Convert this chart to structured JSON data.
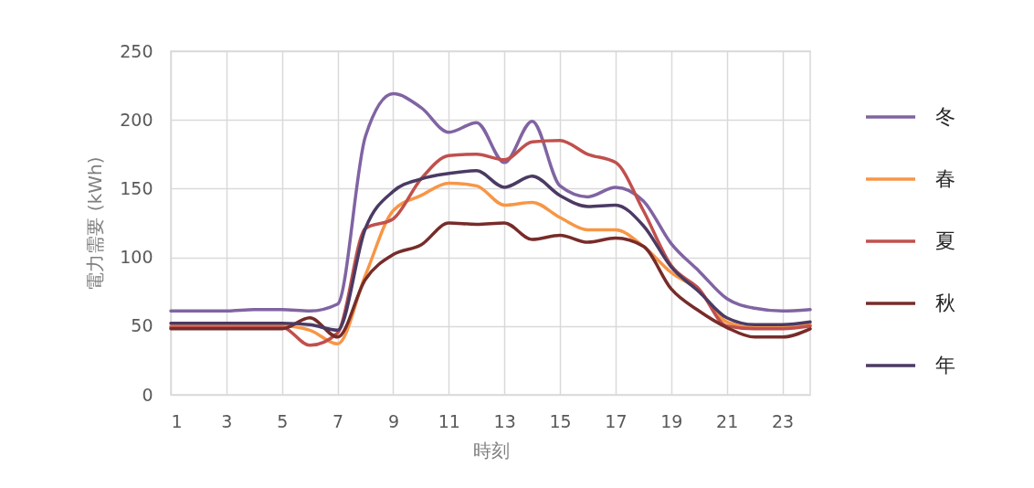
{
  "chart_data": {
    "type": "line",
    "xlabel": "時刻",
    "ylabel": "電力需要 (kWh)",
    "x": [
      1,
      2,
      3,
      4,
      5,
      6,
      7,
      8,
      9,
      10,
      11,
      12,
      13,
      14,
      15,
      16,
      17,
      18,
      19,
      20,
      21,
      22,
      23,
      24
    ],
    "xlim": [
      1,
      24
    ],
    "xticks": [
      1,
      3,
      5,
      7,
      9,
      11,
      13,
      15,
      17,
      19,
      21,
      23
    ],
    "ylim": [
      0,
      250
    ],
    "yticks": [
      0,
      50,
      100,
      150,
      200,
      250
    ],
    "grid": true,
    "legend": "right",
    "line_style": "solid",
    "series": [
      {
        "name": "冬",
        "color": "#8064a2",
        "values": [
          61,
          61,
          61,
          62,
          62,
          61,
          66,
          188,
          219,
          209,
          191,
          198,
          169,
          199,
          152,
          144,
          151,
          141,
          110,
          90,
          70,
          63,
          61,
          62
        ]
      },
      {
        "name": "春",
        "color": "#f79646",
        "values": [
          50,
          50,
          50,
          50,
          50,
          47,
          37,
          87,
          134,
          145,
          154,
          152,
          138,
          140,
          129,
          120,
          120,
          108,
          89,
          76,
          53,
          49,
          49,
          51
        ]
      },
      {
        "name": "夏",
        "color": "#c0504d",
        "values": [
          49,
          49,
          49,
          49,
          49,
          36,
          45,
          121,
          128,
          157,
          174,
          175,
          171,
          184,
          185,
          175,
          169,
          134,
          94,
          77,
          50,
          48,
          48,
          50
        ]
      },
      {
        "name": "秋",
        "color": "#772c2a",
        "values": [
          48,
          48,
          48,
          48,
          48,
          56,
          42,
          84,
          102,
          109,
          125,
          124,
          125,
          113,
          116,
          111,
          114,
          108,
          77,
          61,
          49,
          42,
          42,
          48
        ]
      },
      {
        "name": "年",
        "color": "#4b3a63",
        "values": [
          52,
          52,
          52,
          52,
          52,
          51,
          47,
          121,
          148,
          157,
          161,
          163,
          151,
          159,
          145,
          137,
          138,
          123,
          93,
          75,
          56,
          51,
          51,
          53
        ]
      }
    ]
  }
}
